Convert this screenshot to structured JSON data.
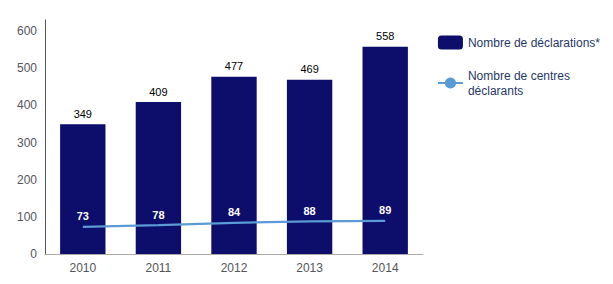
{
  "chart_data": {
    "type": "bar",
    "categories": [
      "2010",
      "2011",
      "2012",
      "2013",
      "2014"
    ],
    "series": [
      {
        "name": "Nombre de déclarations*",
        "type": "bar",
        "color": "#0d0d6b",
        "values": [
          349,
          409,
          477,
          469,
          558
        ]
      },
      {
        "name": "Nombre de centres\ndéclarants",
        "type": "line",
        "color": "#5b9bd5",
        "values": [
          73,
          78,
          84,
          88,
          89
        ]
      }
    ],
    "ylim": [
      0,
      630
    ],
    "yticks": [
      0,
      100,
      200,
      300,
      400,
      500,
      600
    ],
    "grid": false,
    "legend": "right",
    "data_labels": true
  }
}
